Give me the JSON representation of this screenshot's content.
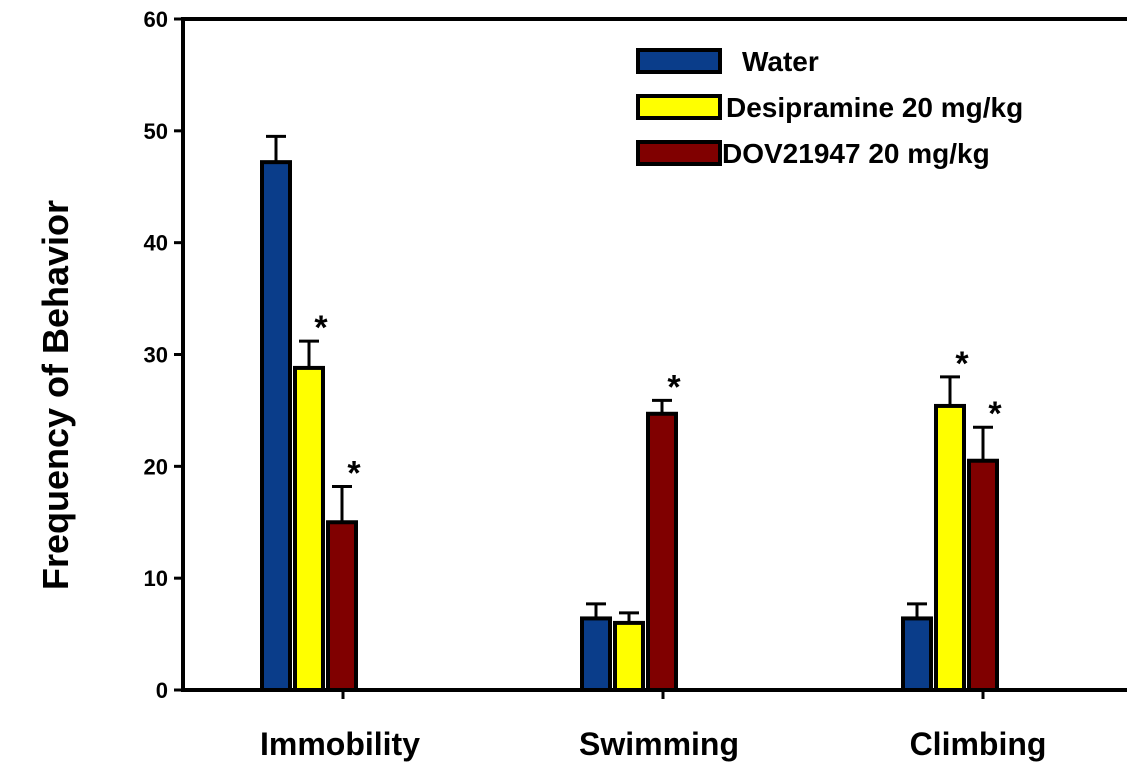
{
  "chart_data": {
    "type": "bar",
    "title": "",
    "xlabel": "",
    "ylabel": "Frequency of Behavior",
    "ylim": [
      0,
      60
    ],
    "yticks": [
      0,
      10,
      20,
      30,
      40,
      50,
      60
    ],
    "categories": [
      "Immobility",
      "Swimming",
      "Climbing"
    ],
    "series": [
      {
        "name": "Water",
        "color": "#0a3d8a",
        "values": [
          47.2,
          6.4,
          6.4
        ],
        "errors": [
          2.3,
          1.3,
          1.3
        ],
        "significant": [
          false,
          false,
          false
        ]
      },
      {
        "name": "Desipramine 20 mg/kg",
        "color": "#ffff00",
        "values": [
          28.8,
          6.0,
          25.4
        ],
        "errors": [
          2.4,
          0.9,
          2.6
        ],
        "significant": [
          true,
          false,
          true
        ]
      },
      {
        "name": "DOV21947 20 mg/kg",
        "color": "#800000",
        "values": [
          15.0,
          24.7,
          20.5
        ],
        "errors": [
          3.2,
          1.2,
          3.0
        ],
        "significant": [
          true,
          true,
          true
        ]
      }
    ],
    "significance_marker": "*",
    "legend_position": "top-right",
    "grid": false
  }
}
